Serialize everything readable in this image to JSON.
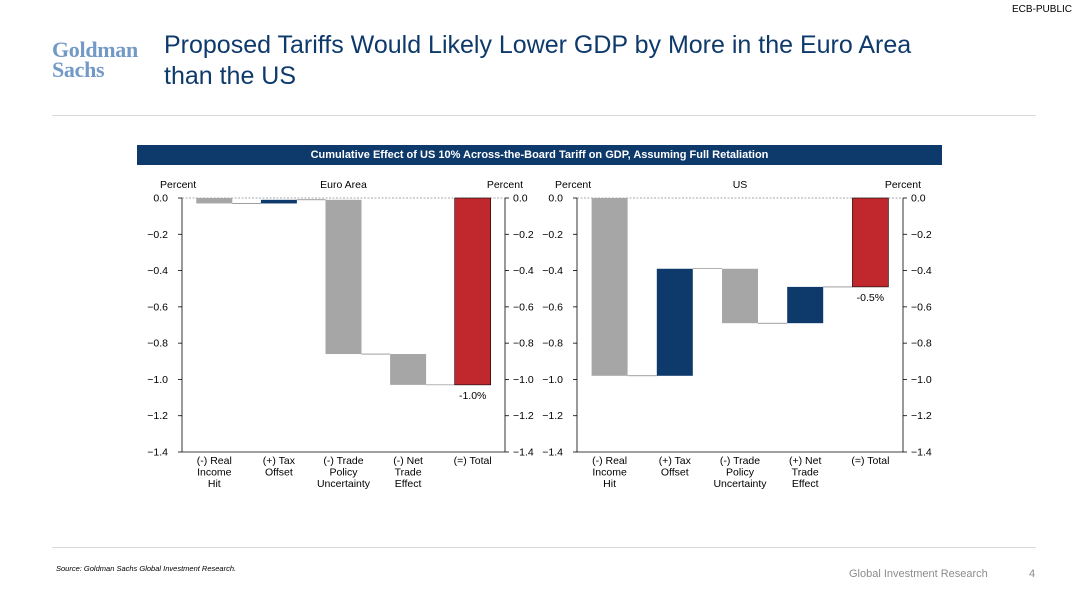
{
  "header": {
    "classification": "ECB-PUBLIC",
    "logo_line1": "Goldman",
    "logo_line2": "Sachs",
    "title": "Proposed Tariffs Would Likely Lower GDP by More in the Euro Area than the US"
  },
  "colors": {
    "navy": "#0e3a6b",
    "gray": "#a6a6a6",
    "red": "#c0282d",
    "logo_blue": "#7399c6"
  },
  "chart_data": {
    "title": "Cumulative Effect of US 10% Across-the-Board Tariff on GDP, Assuming Full Retaliation",
    "panels": [
      {
        "type": "bar",
        "subtype": "waterfall",
        "name": "Euro Area",
        "ylabel_left": "Percent",
        "ylabel_right": "Percent",
        "ylim": [
          -1.4,
          0.0
        ],
        "yticks": [
          "0.0",
          "−0.2",
          "−0.4",
          "−0.6",
          "−0.8",
          "−1.0",
          "−1.2",
          "−1.4"
        ],
        "ytick_values": [
          0.0,
          -0.2,
          -0.4,
          -0.6,
          -0.8,
          -1.0,
          -1.2,
          -1.4
        ],
        "categories": [
          [
            "(-) Real",
            "Income",
            "Hit"
          ],
          [
            "(+) Tax",
            "Offset"
          ],
          [
            "(-) Trade",
            "Policy",
            "Uncertainty"
          ],
          [
            "(-) Net",
            "Trade",
            "Effect"
          ],
          [
            "(=) Total"
          ]
        ],
        "bars": [
          {
            "start": 0.0,
            "end": -0.03,
            "color": "gray"
          },
          {
            "start": -0.03,
            "end": -0.01,
            "color": "navy"
          },
          {
            "start": -0.01,
            "end": -0.86,
            "color": "gray"
          },
          {
            "start": -0.86,
            "end": -1.03,
            "color": "gray"
          },
          {
            "start": 0.0,
            "end": -1.03,
            "color": "red"
          }
        ],
        "total_label": "-1.0%"
      },
      {
        "type": "bar",
        "subtype": "waterfall",
        "name": "US",
        "ylabel_left": "Percent",
        "ylabel_right": "Percent",
        "ylim": [
          -1.4,
          0.0
        ],
        "yticks": [
          "0.0",
          "−0.2",
          "−0.4",
          "−0.6",
          "−0.8",
          "−1.0",
          "−1.2",
          "−1.4"
        ],
        "ytick_values": [
          0.0,
          -0.2,
          -0.4,
          -0.6,
          -0.8,
          -1.0,
          -1.2,
          -1.4
        ],
        "categories": [
          [
            "(-) Real",
            "Income",
            "Hit"
          ],
          [
            "(+) Tax",
            "Offset"
          ],
          [
            "(-) Trade",
            "Policy",
            "Uncertainty"
          ],
          [
            "(+) Net",
            "Trade",
            "Effect"
          ],
          [
            "(=) Total"
          ]
        ],
        "bars": [
          {
            "start": 0.0,
            "end": -0.98,
            "color": "gray"
          },
          {
            "start": -0.98,
            "end": -0.39,
            "color": "navy"
          },
          {
            "start": -0.39,
            "end": -0.69,
            "color": "gray"
          },
          {
            "start": -0.69,
            "end": -0.49,
            "color": "navy"
          },
          {
            "start": 0.0,
            "end": -0.49,
            "color": "red"
          }
        ],
        "total_label": "-0.5%"
      }
    ]
  },
  "footer": {
    "source": "Source: Goldman Sachs Global Investment Research.",
    "brand": "Global Investment Research",
    "page_number": "4"
  }
}
